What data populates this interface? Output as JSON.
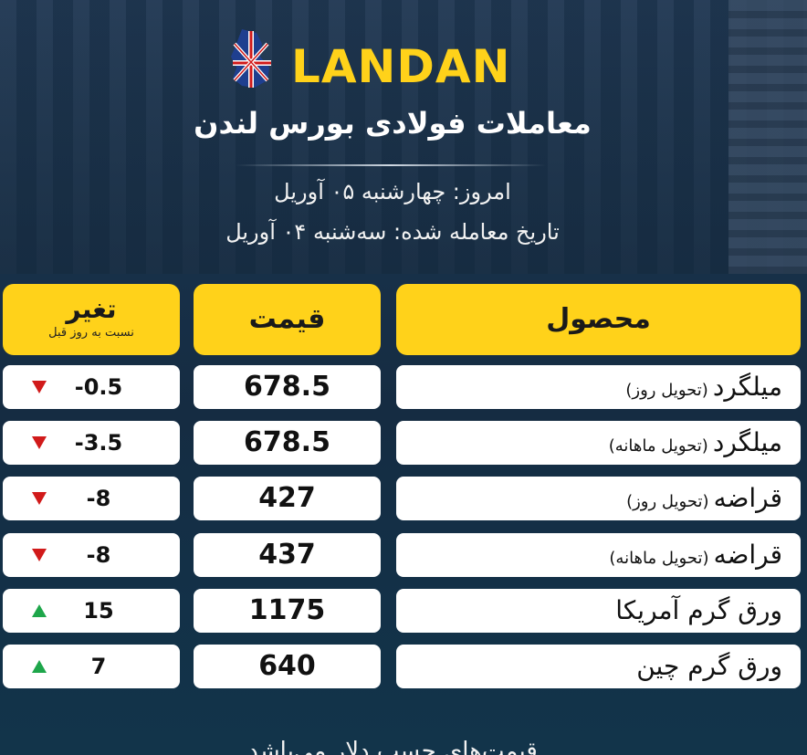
{
  "brand": {
    "name": "LANDAN"
  },
  "header": {
    "title": "معاملات فولادی بورس لندن",
    "today": "امروز: چهارشنبه ۰۵ آوریل",
    "trade_date": "تاریخ معامله شده: سه‌شنبه ۰۴ آوریل"
  },
  "table": {
    "columns": {
      "product": "محصول",
      "price": "قیمت",
      "change": "تغیر",
      "change_sub": "نسبت به روز قبل"
    },
    "rows": [
      {
        "product": "میلگرد",
        "product_sub": "(تحویل روز)",
        "price": "678.5",
        "change": "-0.5",
        "direction": "down"
      },
      {
        "product": "میلگرد",
        "product_sub": "(تحویل ماهانه)",
        "price": "678.5",
        "change": "-3.5",
        "direction": "down"
      },
      {
        "product": "قراضه",
        "product_sub": "(تحویل روز)",
        "price": "427",
        "change": "-8",
        "direction": "down"
      },
      {
        "product": "قراضه",
        "product_sub": "(تحویل ماهانه)",
        "price": "437",
        "change": "-8",
        "direction": "down"
      },
      {
        "product": "ورق گرم آمریکا",
        "product_sub": "",
        "price": "1175",
        "change": "15",
        "direction": "up"
      },
      {
        "product": "ورق گرم چین",
        "product_sub": "",
        "price": "640",
        "change": "7",
        "direction": "up"
      }
    ]
  },
  "footer": {
    "note": "قیمت‌های حسب دلار می‌باشد"
  },
  "colors": {
    "accent": "#ffd21a",
    "down": "#d11a1a",
    "up": "#1ea64a"
  }
}
